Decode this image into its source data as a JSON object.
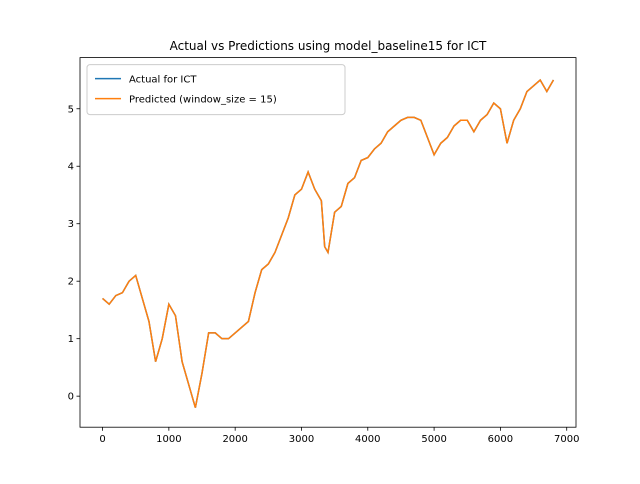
{
  "chart_data": {
    "type": "line",
    "title": "Actual vs Predictions using model_baseline15 for ICT",
    "x": [
      0,
      100,
      200,
      300,
      400,
      500,
      600,
      700,
      800,
      900,
      1000,
      1100,
      1200,
      1300,
      1400,
      1500,
      1600,
      1700,
      1800,
      1900,
      2000,
      2100,
      2200,
      2300,
      2400,
      2500,
      2600,
      2700,
      2800,
      2900,
      3000,
      3100,
      3200,
      3300,
      3350,
      3400,
      3500,
      3600,
      3700,
      3800,
      3900,
      4000,
      4100,
      4200,
      4300,
      4400,
      4500,
      4600,
      4700,
      4800,
      4900,
      5000,
      5100,
      5200,
      5300,
      5400,
      5500,
      5600,
      5700,
      5800,
      5900,
      6000,
      6100,
      6200,
      6300,
      6400,
      6500,
      6600,
      6700,
      6800
    ],
    "series": [
      {
        "name": "Actual for ICT",
        "color": "#1f77b4",
        "values": [
          1.7,
          1.6,
          1.75,
          1.8,
          2.0,
          2.1,
          1.7,
          1.3,
          0.6,
          1.0,
          1.6,
          1.4,
          0.6,
          0.2,
          -0.2,
          0.4,
          1.1,
          1.1,
          1.0,
          1.0,
          1.1,
          1.2,
          1.3,
          1.8,
          2.2,
          2.3,
          2.5,
          2.8,
          3.1,
          3.5,
          3.6,
          3.9,
          3.6,
          3.4,
          2.6,
          2.5,
          3.2,
          3.3,
          3.7,
          3.8,
          4.1,
          4.15,
          4.3,
          4.4,
          4.6,
          4.7,
          4.8,
          4.85,
          4.85,
          4.8,
          4.5,
          4.2,
          4.4,
          4.5,
          4.7,
          4.8,
          4.8,
          4.6,
          4.8,
          4.9,
          5.1,
          5.0,
          4.4,
          4.8,
          5.0,
          5.3,
          5.4,
          5.5,
          5.3,
          5.5
        ]
      },
      {
        "name": "Predicted (window_size = 15)",
        "color": "#ff7f0e",
        "values": [
          1.7,
          1.6,
          1.75,
          1.8,
          2.0,
          2.1,
          1.7,
          1.3,
          0.6,
          1.0,
          1.6,
          1.4,
          0.6,
          0.2,
          -0.2,
          0.4,
          1.1,
          1.1,
          1.0,
          1.0,
          1.1,
          1.2,
          1.3,
          1.8,
          2.2,
          2.3,
          2.5,
          2.8,
          3.1,
          3.5,
          3.6,
          3.9,
          3.6,
          3.4,
          2.6,
          2.5,
          3.2,
          3.3,
          3.7,
          3.8,
          4.1,
          4.15,
          4.3,
          4.4,
          4.6,
          4.7,
          4.8,
          4.85,
          4.85,
          4.8,
          4.5,
          4.2,
          4.4,
          4.5,
          4.7,
          4.8,
          4.8,
          4.6,
          4.8,
          4.9,
          5.1,
          5.0,
          4.4,
          4.8,
          5.0,
          5.3,
          5.4,
          5.5,
          5.3,
          5.5
        ]
      }
    ],
    "xlim": [
      -340,
      7140
    ],
    "xticks": [
      0,
      1000,
      2000,
      3000,
      4000,
      5000,
      6000,
      7000
    ],
    "ylim": [
      -0.54,
      5.89
    ],
    "yticks": [
      0,
      1,
      2,
      3,
      4,
      5
    ],
    "legend": "upper left",
    "grid": false
  }
}
